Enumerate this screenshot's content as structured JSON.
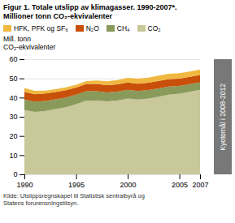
{
  "chart_data": {
    "type": "area",
    "stacked": true,
    "title": "Figur 1. Totale utslipp av klimagasser. 1990-2007*.",
    "subtitle": "Millioner tonn CO₂-ekvivalenter",
    "ylabel": "Mill. tonn\nCO₂-ekvivalenter",
    "x": [
      1990,
      1991,
      1992,
      1993,
      1994,
      1995,
      1996,
      1997,
      1998,
      1999,
      2000,
      2001,
      2002,
      2003,
      2004,
      2005,
      2006,
      2007
    ],
    "series": [
      {
        "name": "CO₂",
        "color": "#c8c89a",
        "values": [
          33.5,
          32.5,
          33.0,
          34.0,
          35.0,
          36.5,
          38.5,
          38.5,
          38.0,
          38.5,
          39.5,
          39.0,
          39.5,
          40.5,
          41.5,
          42.0,
          43.0,
          44.0
        ]
      },
      {
        "name": "CH₄",
        "color": "#8a9a5a",
        "values": [
          5.5,
          5.3,
          5.2,
          5.1,
          5.0,
          5.0,
          4.8,
          4.8,
          4.7,
          4.6,
          4.5,
          4.4,
          4.4,
          4.3,
          4.2,
          4.1,
          4.0,
          4.0
        ]
      },
      {
        "name": "N₂O",
        "color": "#c8500a",
        "values": [
          4.0,
          3.9,
          3.9,
          3.8,
          3.8,
          3.7,
          3.8,
          3.8,
          3.8,
          3.8,
          3.8,
          3.8,
          3.8,
          3.9,
          3.9,
          3.8,
          3.8,
          3.8
        ]
      },
      {
        "name": "HFK, PFK og SF₆",
        "color": "#f0b840",
        "values": [
          2.0,
          1.8,
          1.5,
          1.5,
          1.5,
          1.5,
          1.5,
          1.8,
          2.0,
          2.2,
          2.5,
          2.7,
          2.7,
          2.7,
          2.8,
          2.8,
          2.8,
          2.8
        ]
      }
    ],
    "xlim": [
      1990,
      2007
    ],
    "xticks": [
      1990,
      1995,
      2000,
      2005,
      2007
    ],
    "ylim": [
      0,
      60
    ],
    "yticks": [
      0,
      10,
      20,
      30,
      40,
      50,
      60
    ],
    "grid": true,
    "legend": "top",
    "annotations": [
      {
        "text": "Kyotomål i 2008-2012",
        "color": "#787878"
      }
    ],
    "source": "Kilde: Utslippsregnskapet til Statistisk sentralbyrå og\nStatens forurensningstilsyn."
  }
}
